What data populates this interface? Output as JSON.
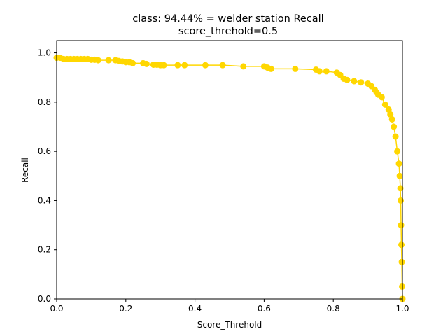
{
  "chart_data": {
    "type": "line",
    "title": "class: 94.44% = welder station Recall",
    "subtitle": "score_threhold=0.5",
    "xlabel": "Score_Threhold",
    "ylabel": "Recall",
    "xlim": [
      0.0,
      1.0
    ],
    "ylim": [
      0.0,
      1.05
    ],
    "xticks": [
      "0.0",
      "0.2",
      "0.4",
      "0.6",
      "0.8",
      "1.0"
    ],
    "yticks": [
      "0.0",
      "0.2",
      "0.4",
      "0.6",
      "0.8",
      "1.0"
    ],
    "grid": false,
    "color": "#ffd700",
    "series": [
      {
        "marker": "circle",
        "x": [
          0.0,
          0.01,
          0.02,
          0.03,
          0.04,
          0.05,
          0.06,
          0.07,
          0.08,
          0.09,
          0.1,
          0.11,
          0.12,
          0.15,
          0.17,
          0.18,
          0.19,
          0.2,
          0.21,
          0.22,
          0.25,
          0.26,
          0.28,
          0.29,
          0.3,
          0.31,
          0.35,
          0.37,
          0.43,
          0.48,
          0.54,
          0.6,
          0.61,
          0.62,
          0.69,
          0.75,
          0.76,
          0.78,
          0.81,
          0.82,
          0.83,
          0.84,
          0.86,
          0.88,
          0.9,
          0.91,
          0.92,
          0.925,
          0.93,
          0.94,
          0.95,
          0.96,
          0.965,
          0.97,
          0.975,
          0.98,
          0.985,
          0.99,
          0.992,
          0.994,
          0.995,
          0.996,
          0.997,
          0.998,
          0.999,
          1.0
        ],
        "y": [
          0.98,
          0.98,
          0.975,
          0.975,
          0.975,
          0.975,
          0.975,
          0.975,
          0.975,
          0.975,
          0.972,
          0.972,
          0.97,
          0.97,
          0.97,
          0.967,
          0.965,
          0.962,
          0.962,
          0.958,
          0.958,
          0.955,
          0.952,
          0.952,
          0.95,
          0.95,
          0.95,
          0.95,
          0.95,
          0.95,
          0.945,
          0.945,
          0.94,
          0.935,
          0.935,
          0.932,
          0.925,
          0.925,
          0.92,
          0.91,
          0.895,
          0.89,
          0.885,
          0.88,
          0.875,
          0.865,
          0.85,
          0.84,
          0.83,
          0.82,
          0.79,
          0.77,
          0.75,
          0.73,
          0.7,
          0.66,
          0.6,
          0.55,
          0.5,
          0.45,
          0.4,
          0.3,
          0.22,
          0.15,
          0.05,
          0.0
        ]
      }
    ]
  }
}
